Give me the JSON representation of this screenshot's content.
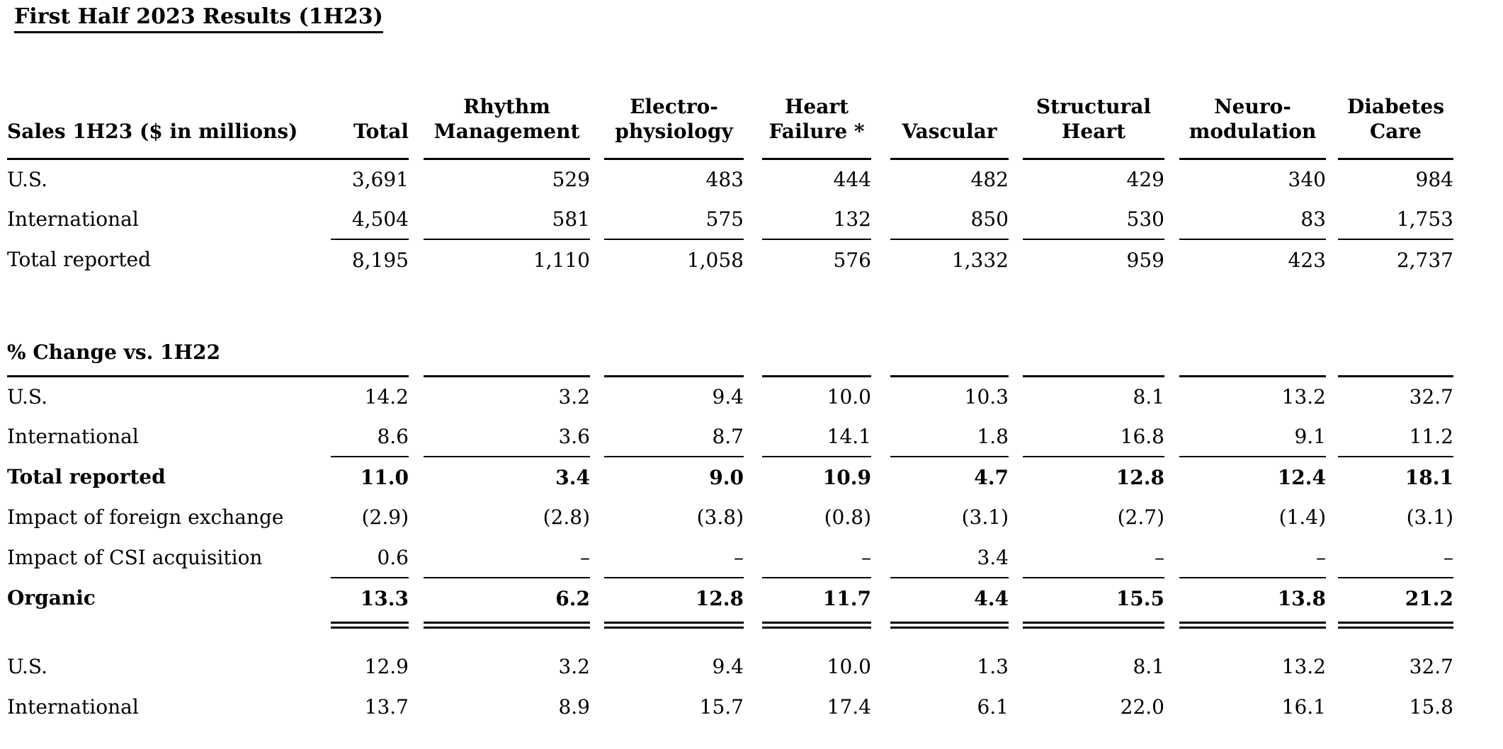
{
  "title": "First Half 2023 Results (1H23)",
  "colors": {
    "text": "#000000",
    "background": "#ffffff",
    "rules": "#000000"
  },
  "table": {
    "header": {
      "row_label": "Sales 1H23 ($ in millions)",
      "columns": [
        {
          "lines": [
            "Total"
          ]
        },
        {
          "lines": [
            "Rhythm",
            "Management"
          ]
        },
        {
          "lines": [
            "Electro-",
            "physiology"
          ]
        },
        {
          "lines": [
            "Heart",
            "Failure *"
          ]
        },
        {
          "lines": [
            "Vascular"
          ]
        },
        {
          "lines": [
            "Structural",
            "Heart"
          ]
        },
        {
          "lines": [
            "Neuro-",
            "modulation"
          ]
        },
        {
          "lines": [
            "Diabetes",
            "Care"
          ]
        }
      ]
    },
    "rows": [
      {
        "label": "U.S.",
        "indent": 1,
        "values": [
          "3,691",
          "529",
          "483",
          "444",
          "482",
          "429",
          "340",
          "984"
        ]
      },
      {
        "label": "International",
        "indent": 1,
        "rule_below": "thin",
        "values": [
          "4,504",
          "581",
          "575",
          "132",
          "850",
          "530",
          "83",
          "1,753"
        ]
      },
      {
        "label": "Total reported",
        "indent": 0,
        "values": [
          "8,195",
          "1,110",
          "1,058",
          "576",
          "1,332",
          "959",
          "423",
          "2,737"
        ]
      },
      {
        "type": "spacer"
      },
      {
        "type": "section",
        "label": "% Change vs. 1H22"
      },
      {
        "label": "U.S.",
        "indent": 1,
        "values": [
          "14.2",
          "3.2",
          "9.4",
          "10.0",
          "10.3",
          "8.1",
          "13.2",
          "32.7"
        ]
      },
      {
        "label": "International",
        "indent": 1,
        "rule_below": "thin",
        "values": [
          "8.6",
          "3.6",
          "8.7",
          "14.1",
          "1.8",
          "16.8",
          "9.1",
          "11.2"
        ]
      },
      {
        "label": "Total reported",
        "indent": 0,
        "bold": true,
        "values": [
          "11.0",
          "3.4",
          "9.0",
          "10.9",
          "4.7",
          "12.8",
          "12.4",
          "18.1"
        ]
      },
      {
        "label": "Impact of foreign exchange",
        "indent": 1,
        "values": [
          "(2.9)",
          "(2.8)",
          "(3.8)",
          "(0.8)",
          "(3.1)",
          "(2.7)",
          "(1.4)",
          "(3.1)"
        ]
      },
      {
        "label": "Impact of CSI acquisition",
        "indent": 1,
        "rule_below": "thin",
        "values": [
          "0.6",
          "–",
          "–",
          "–",
          "3.4",
          "–",
          "–",
          "–"
        ]
      },
      {
        "label": "Organic",
        "indent": 0,
        "bold": true,
        "values": [
          "13.3",
          "6.2",
          "12.8",
          "11.7",
          "4.4",
          "15.5",
          "13.8",
          "21.2"
        ]
      },
      {
        "type": "double-rule"
      },
      {
        "type": "spacer-small"
      },
      {
        "label": "U.S.",
        "indent": 2,
        "values": [
          "12.9",
          "3.2",
          "9.4",
          "10.0",
          "1.3",
          "8.1",
          "13.2",
          "32.7"
        ]
      },
      {
        "label": "International",
        "indent": 2,
        "values": [
          "13.7",
          "8.9",
          "15.7",
          "17.4",
          "6.1",
          "22.0",
          "16.1",
          "15.8"
        ]
      }
    ]
  }
}
